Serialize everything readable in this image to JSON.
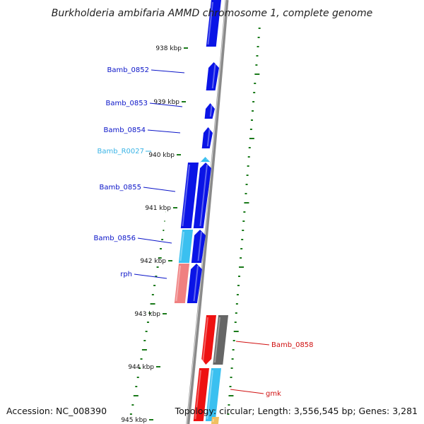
{
  "title": "Burkholderia ambifaria AMMD chromosome 1, complete genome",
  "footer": {
    "accession": "Accession: NC_008390",
    "topology": "Topology: circular; Length: 3,556,545 bp; Genes: 3,281"
  },
  "colors": {
    "backbone": "#8a8a8a",
    "gc_ticks": "#1a7a1a",
    "gene_forward": "#0a14e6",
    "trna": "#3ac0f0",
    "rph": "#f08080",
    "gene_reverse": "#ee1111",
    "gene_reverse_gray": "#666666",
    "label_blue": "#0a14c8",
    "label_cyan": "#3ab4e6",
    "label_red": "#d01010"
  },
  "scale_ticks": [
    {
      "label": "938 kbp"
    },
    {
      "label": "939 kbp"
    },
    {
      "label": "940 kbp"
    },
    {
      "label": "941 kbp"
    },
    {
      "label": "942 kbp"
    },
    {
      "label": "943 kbp"
    },
    {
      "label": "944 kbp"
    },
    {
      "label": "945 kbp"
    }
  ],
  "gene_labels": [
    {
      "name": "Bamb_0852",
      "color": "label_blue"
    },
    {
      "name": "Bamb_0853",
      "color": "label_blue"
    },
    {
      "name": "Bamb_0854",
      "color": "label_blue"
    },
    {
      "name": "Bamb_R0027",
      "color": "label_cyan"
    },
    {
      "name": "Bamb_0855",
      "color": "label_blue"
    },
    {
      "name": "Bamb_0856",
      "color": "label_blue"
    },
    {
      "name": "rph",
      "color": "label_blue"
    },
    {
      "name": "Bamb_0858",
      "color": "label_red"
    },
    {
      "name": "gmk",
      "color": "label_red"
    }
  ]
}
